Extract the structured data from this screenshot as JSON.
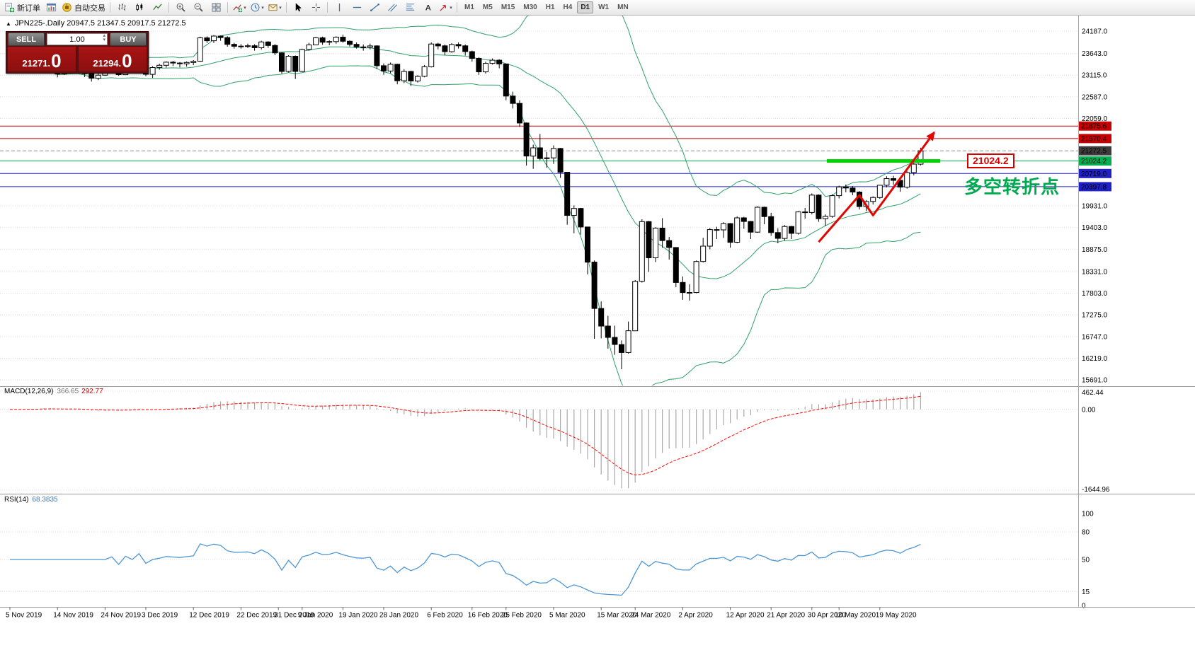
{
  "toolbar": {
    "new_order_label": "新订单",
    "autotrade_label": "自动交易",
    "text_tool": "A",
    "timeframes": [
      "M1",
      "M5",
      "M15",
      "M30",
      "H1",
      "H4",
      "D1",
      "W1",
      "MN"
    ],
    "active_timeframe": "D1"
  },
  "quote_panel": {
    "sell_label": "SELL",
    "buy_label": "BUY",
    "volume": "1.00",
    "sell_price_main": "21271.",
    "sell_price_big": "0",
    "buy_price_main": "21294.",
    "buy_price_big": "0"
  },
  "chart": {
    "header": "JPN225-.Daily  20947.5 21347.5 20917.5 21272.5"
  },
  "annotations": {
    "level_box": "21024.2",
    "turning_point": "多空转折点"
  },
  "price_axis": {
    "ticks": [
      "24187.0",
      "23643.0",
      "23115.0",
      "22587.0",
      "22059.0",
      "19931.0",
      "19403.0",
      "18875.0",
      "18331.0",
      "17803.0",
      "17275.0",
      "16747.0",
      "16219.0",
      "15691.0"
    ]
  },
  "macd": {
    "name": "MACD(12,26,9)",
    "value_main": "366.65",
    "value_signal": "292.77",
    "axis": {
      "top": "462.44",
      "zero": "0.00",
      "bottom": "-1644.96"
    }
  },
  "rsi": {
    "name": "RSI(14)",
    "value": "68.3835",
    "axis": [
      {
        "text": "100",
        "value": 100
      },
      {
        "text": "80",
        "value": 80
      },
      {
        "text": "50",
        "value": 50
      },
      {
        "text": "15",
        "value": 15
      },
      {
        "text": "0",
        "value": 0
      }
    ],
    "levels": [
      80,
      50,
      15
    ]
  },
  "date_axis": [
    {
      "label": "5 Nov 2019",
      "i": 0
    },
    {
      "label": "14 Nov 2019",
      "i": 7
    },
    {
      "label": "24 Nov 2019",
      "i": 14
    },
    {
      "label": "3 Dec 2019",
      "i": 20
    },
    {
      "label": "12 Dec 2019",
      "i": 27
    },
    {
      "label": "22 Dec 2019",
      "i": 34
    },
    {
      "label": "31 Dec 2019",
      "i": 39.5
    },
    {
      "label": "9 Jan 2020",
      "i": 43
    },
    {
      "label": "19 Jan 2020",
      "i": 49
    },
    {
      "label": "28 Jan 2020",
      "i": 55
    },
    {
      "label": "6 Feb 2020",
      "i": 62
    },
    {
      "label": "16 Feb 2020",
      "i": 68
    },
    {
      "label": "25 Feb 2020",
      "i": 73
    },
    {
      "label": "5 Mar 2020",
      "i": 80
    },
    {
      "label": "15 Mar 2020",
      "i": 87
    },
    {
      "label": "24 Mar 2020",
      "i": 92
    },
    {
      "label": "2 Apr 2020",
      "i": 99
    },
    {
      "label": "12 Apr 2020",
      "i": 106
    },
    {
      "label": "21 Apr 2020",
      "i": 112
    },
    {
      "label": "30 Apr 2020",
      "i": 118
    },
    {
      "label": "10 May 2020",
      "i": 122
    },
    {
      "label": "19 May 2020",
      "i": 128
    }
  ],
  "chart_data": {
    "type": "candlestick",
    "symbol": "JPN225-",
    "period": "Daily",
    "title": "JPN225-.Daily",
    "last_ohlc": [
      20947.5,
      21347.5,
      20917.5,
      21272.5
    ],
    "price_range": [
      15555,
      24566
    ],
    "colors": {
      "bull": "#FFFFFF",
      "bear": "#000000",
      "wick": "#000000",
      "bollinger": "#2FA06A",
      "grid": "#DCDCDC",
      "macd_hist": "#A9A9A9",
      "macd_signal": "#FF0000",
      "rsi_line": "#4E96D2",
      "level_red": "#C80000",
      "level_green": "#00B050",
      "level_blue": "#2020C8",
      "segment_green": "#00D400",
      "arrow_red": "#E10600"
    },
    "bollinger": {
      "period": 20,
      "deviation": 2
    },
    "macd_params": {
      "fast": 12,
      "slow": 26,
      "signal": 9
    },
    "rsi_period": 14,
    "hlines": [
      {
        "value": 21875.6,
        "color": "#C80000",
        "label": "21875.6",
        "label_bg": "#C80000"
      },
      {
        "value": 21570.4,
        "color": "#C80000",
        "label": "21570.4",
        "label_bg": "#C80000"
      },
      {
        "value": 21272.5,
        "color": "#8C8C8C",
        "dash": true,
        "label": "21272.5",
        "label_bg": "#3C3C3C"
      },
      {
        "value": 21024.2,
        "color": "#00B050",
        "label": "21024.2",
        "label_bg": "#00B050"
      },
      {
        "value": 20719.0,
        "color": "#2020C8",
        "label": "20719.0",
        "label_bg": "#2020C8"
      },
      {
        "value": 20397.8,
        "color": "#2020C8",
        "label": "20397.8",
        "label_bg": "#2020C8"
      }
    ],
    "green_segment": {
      "value": 21024.2,
      "from_i": 120.2,
      "to_i": 136.9
    },
    "trend_arrow": [
      [
        119,
        19050
      ],
      [
        125,
        20190
      ],
      [
        127,
        19700
      ],
      [
        136,
        21720
      ]
    ],
    "ohlc": [
      [
        23330,
        23365,
        23250,
        23292
      ],
      [
        23292,
        23345,
        23255,
        23304
      ],
      [
        23304,
        23350,
        23268,
        23330
      ],
      [
        23330,
        23432,
        23288,
        23392
      ],
      [
        23392,
        23428,
        23302,
        23332
      ],
      [
        23332,
        23562,
        23318,
        23520
      ],
      [
        23520,
        23545,
        23268,
        23303
      ],
      [
        23303,
        23322,
        23060,
        23141
      ],
      [
        23141,
        23342,
        23118,
        23303
      ],
      [
        23303,
        23372,
        23278,
        23331
      ],
      [
        23331,
        23422,
        23262,
        23292
      ],
      [
        23292,
        23302,
        23068,
        23149
      ],
      [
        23149,
        23162,
        22958,
        23038
      ],
      [
        23038,
        23152,
        22993,
        23113
      ],
      [
        23113,
        23312,
        23098,
        23293
      ],
      [
        23293,
        23402,
        23258,
        23373
      ],
      [
        23373,
        23392,
        23098,
        23126
      ],
      [
        23126,
        23432,
        23118,
        23409
      ],
      [
        23409,
        23422,
        23238,
        23294
      ],
      [
        23294,
        23562,
        23288,
        23530
      ],
      [
        23530,
        23542,
        23088,
        23135
      ],
      [
        23135,
        23332,
        23048,
        23300
      ],
      [
        23300,
        23392,
        23248,
        23354
      ],
      [
        23354,
        23452,
        23298,
        23430
      ],
      [
        23430,
        23462,
        23338,
        23410
      ],
      [
        23410,
        23432,
        23302,
        23392
      ],
      [
        23392,
        23448,
        23322,
        23424
      ],
      [
        23424,
        23480,
        23360,
        23452
      ],
      [
        23452,
        24050,
        23440,
        24023
      ],
      [
        24023,
        24062,
        23900,
        23952
      ],
      [
        23952,
        24091,
        23900,
        24066
      ],
      [
        24066,
        24080,
        23952,
        24030
      ],
      [
        24030,
        24062,
        23808,
        23864
      ],
      [
        23864,
        23902,
        23762,
        23817
      ],
      [
        23817,
        23872,
        23760,
        23821
      ],
      [
        23821,
        23882,
        23774,
        23830
      ],
      [
        23830,
        23868,
        23712,
        23783
      ],
      [
        23783,
        23952,
        23740,
        23924
      ],
      [
        23924,
        23940,
        23780,
        23837
      ],
      [
        23837,
        23872,
        23602,
        23657
      ],
      [
        23657,
        23672,
        23148,
        23205
      ],
      [
        23205,
        23602,
        23182,
        23575
      ],
      [
        23575,
        23592,
        23020,
        23204
      ],
      [
        23204,
        23762,
        23192,
        23740
      ],
      [
        23740,
        23902,
        23712,
        23851
      ],
      [
        23851,
        24042,
        23842,
        24025
      ],
      [
        24025,
        24052,
        23852,
        23917
      ],
      [
        23917,
        23962,
        23842,
        23933
      ],
      [
        23933,
        24062,
        23880,
        24041
      ],
      [
        24041,
        24102,
        23902,
        23941
      ],
      [
        23941,
        23962,
        23812,
        23864
      ],
      [
        23864,
        23912,
        23762,
        23803
      ],
      [
        23803,
        23862,
        23712,
        23795
      ],
      [
        23795,
        23882,
        23742,
        23827
      ],
      [
        23827,
        23842,
        23262,
        23344
      ],
      [
        23344,
        23402,
        23122,
        23216
      ],
      [
        23216,
        23422,
        23162,
        23379
      ],
      [
        23379,
        23392,
        22892,
        22977
      ],
      [
        22977,
        23262,
        22922,
        23205
      ],
      [
        23205,
        23222,
        22852,
        22972
      ],
      [
        22972,
        23112,
        22932,
        23085
      ],
      [
        23085,
        23362,
        23062,
        23320
      ],
      [
        23320,
        23912,
        23302,
        23874
      ],
      [
        23874,
        23902,
        23742,
        23828
      ],
      [
        23828,
        23862,
        23602,
        23686
      ],
      [
        23686,
        23892,
        23662,
        23861
      ],
      [
        23861,
        23912,
        23762,
        23828
      ],
      [
        23828,
        23862,
        23592,
        23688
      ],
      [
        23688,
        23712,
        23442,
        23523
      ],
      [
        23523,
        23552,
        23122,
        23194
      ],
      [
        23194,
        23442,
        23152,
        23401
      ],
      [
        23401,
        23522,
        23372,
        23479
      ],
      [
        23479,
        23502,
        23282,
        23387
      ],
      [
        23387,
        23392,
        22502,
        22605
      ],
      [
        22605,
        22712,
        22302,
        22426
      ],
      [
        22426,
        22502,
        21852,
        21948
      ],
      [
        21948,
        21962,
        20912,
        21143
      ],
      [
        21143,
        21422,
        20832,
        21344
      ],
      [
        21344,
        21682,
        21042,
        21083
      ],
      [
        21083,
        21242,
        20862,
        21100
      ],
      [
        21100,
        21402,
        20952,
        21329
      ],
      [
        21329,
        21342,
        20612,
        20750
      ],
      [
        20750,
        20752,
        19472,
        19699
      ],
      [
        19699,
        19942,
        19262,
        19867
      ],
      [
        19867,
        19882,
        19232,
        19416
      ],
      [
        19416,
        19422,
        18262,
        18560
      ],
      [
        18560,
        18602,
        16692,
        17431
      ],
      [
        17431,
        17602,
        16702,
        17002
      ],
      [
        17002,
        17252,
        16452,
        16726
      ],
      [
        16726,
        17012,
        16302,
        16553
      ],
      [
        16553,
        16652,
        15952,
        16358
      ],
      [
        16358,
        17112,
        16332,
        16888
      ],
      [
        16888,
        18122,
        16882,
        18092
      ],
      [
        18092,
        19602,
        18062,
        19547
      ],
      [
        19547,
        19562,
        18322,
        18665
      ],
      [
        18665,
        19412,
        18562,
        19389
      ],
      [
        19389,
        19632,
        18912,
        19085
      ],
      [
        19085,
        19172,
        18622,
        18917
      ],
      [
        18917,
        18922,
        17952,
        18065
      ],
      [
        18065,
        18212,
        17642,
        17819
      ],
      [
        17819,
        18022,
        17622,
        17820
      ],
      [
        17820,
        18602,
        17802,
        18576
      ],
      [
        18576,
        19152,
        18552,
        18950
      ],
      [
        18950,
        19392,
        18872,
        19353
      ],
      [
        19353,
        19422,
        19122,
        19346
      ],
      [
        19346,
        19532,
        19152,
        19499
      ],
      [
        19499,
        19512,
        18912,
        19043
      ],
      [
        19043,
        19672,
        19022,
        19638
      ],
      [
        19638,
        19662,
        19372,
        19550
      ],
      [
        19550,
        19562,
        19122,
        19290
      ],
      [
        19290,
        19922,
        19272,
        19897
      ],
      [
        19897,
        19912,
        19482,
        19669
      ],
      [
        19669,
        19762,
        19202,
        19280
      ],
      [
        19280,
        19382,
        19022,
        19138
      ],
      [
        19138,
        19462,
        19082,
        19429
      ],
      [
        19429,
        19442,
        19122,
        19262
      ],
      [
        19262,
        19802,
        19232,
        19783
      ],
      [
        19783,
        19882,
        19622,
        19771
      ],
      [
        19771,
        20232,
        19722,
        20194
      ],
      [
        20194,
        20212,
        19542,
        19619
      ],
      [
        19619,
        19722,
        19442,
        19675
      ],
      [
        19675,
        20212,
        19642,
        20179
      ],
      [
        20179,
        20422,
        20112,
        20391
      ],
      [
        20391,
        20452,
        20262,
        20366
      ],
      [
        20366,
        20412,
        20192,
        20267
      ],
      [
        20267,
        20292,
        19842,
        19914
      ],
      [
        19914,
        20072,
        19802,
        20037
      ],
      [
        20037,
        20162,
        19962,
        20134
      ],
      [
        20134,
        20442,
        20102,
        20433
      ],
      [
        20433,
        20652,
        20382,
        20595
      ],
      [
        20595,
        20662,
        20442,
        20552
      ],
      [
        20552,
        20602,
        20272,
        20388
      ],
      [
        20388,
        20772,
        20352,
        20741
      ],
      [
        20741,
        20982,
        20672,
        20947.5
      ],
      [
        20947.5,
        21347.5,
        20917.5,
        21272.5
      ]
    ]
  }
}
